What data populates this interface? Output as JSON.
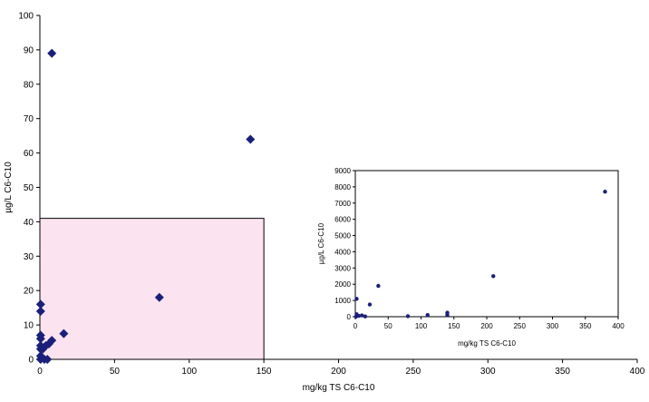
{
  "chart_data": [
    {
      "type": "scatter",
      "title": "",
      "xlabel": "mg/kg TS C6-C10",
      "ylabel": "µg/L C6-C10",
      "xlim": [
        0,
        400
      ],
      "ylim": [
        0,
        100
      ],
      "xticks": [
        "0",
        "50",
        "100",
        "150",
        "200",
        "250",
        "300",
        "350",
        "400"
      ],
      "yticks": [
        "0",
        "10",
        "20",
        "30",
        "40",
        "50",
        "60",
        "70",
        "80",
        "90",
        "100"
      ],
      "grid": false,
      "legend": "none",
      "highlight_region": {
        "x": [
          0,
          150
        ],
        "y": [
          0,
          41
        ],
        "color": "#fbe3ef"
      },
      "series": [
        {
          "marker": "diamond",
          "color": "#1a1f7a",
          "points": [
            [
              8,
              89
            ],
            [
              141,
              64
            ],
            [
              80,
              18
            ],
            [
              16,
              7.5
            ],
            [
              8,
              5.5
            ],
            [
              6,
              4.5
            ],
            [
              4,
              4
            ],
            [
              2,
              3
            ],
            [
              0.5,
              16
            ],
            [
              0.5,
              14
            ],
            [
              0.5,
              7
            ],
            [
              0.5,
              6
            ],
            [
              0.5,
              4
            ],
            [
              0.5,
              3
            ],
            [
              0.5,
              1
            ],
            [
              0.5,
              0
            ],
            [
              3,
              0
            ],
            [
              5,
              0
            ]
          ]
        }
      ]
    },
    {
      "type": "scatter",
      "title": "",
      "xlabel": "mg/kg TS C6-C10",
      "ylabel": "µg/L C6-C10",
      "xlim": [
        0,
        400
      ],
      "ylim": [
        0,
        9000
      ],
      "xticks": [
        "0",
        "50",
        "100",
        "150",
        "200",
        "250",
        "300",
        "350",
        "400"
      ],
      "yticks": [
        "0",
        "1000",
        "2000",
        "3000",
        "4000",
        "5000",
        "6000",
        "7000",
        "8000",
        "9000"
      ],
      "grid": false,
      "legend": "none",
      "series": [
        {
          "marker": "dot",
          "color": "#1a1f7a",
          "points": [
            [
              380,
              7700
            ],
            [
              210,
              2500
            ],
            [
              35,
              1900
            ],
            [
              140,
              250
            ],
            [
              140,
              100
            ],
            [
              110,
              100
            ],
            [
              22,
              750
            ],
            [
              2,
              1100
            ],
            [
              2,
              150
            ],
            [
              5,
              50
            ],
            [
              10,
              80
            ],
            [
              80,
              30
            ],
            [
              15,
              20
            ],
            [
              1,
              0
            ]
          ]
        }
      ]
    }
  ]
}
